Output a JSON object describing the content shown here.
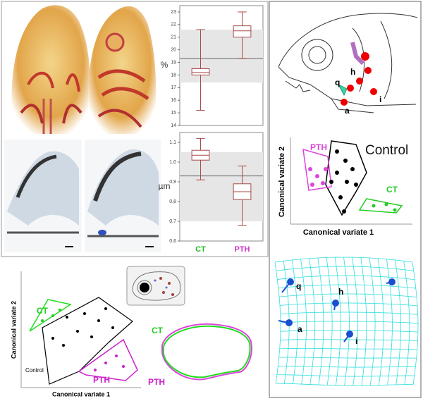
{
  "chart_data": [
    {
      "type": "box",
      "y_label": "%",
      "categories": [
        null,
        null
      ],
      "boxes": [
        {
          "whislo": 15.2,
          "q1": 18.0,
          "med": 18.2,
          "q3": 18.5,
          "whishi": 21.6
        },
        {
          "whislo": 19.3,
          "q1": 21.0,
          "med": 21.5,
          "q3": 21.9,
          "whishi": 23.0
        }
      ],
      "color": "#a84a4a",
      "reference_line": 19.3,
      "reference_band": [
        17.4,
        21.6
      ],
      "ylim": [
        14,
        23.5
      ],
      "yticks": [
        14,
        15,
        16,
        17,
        18,
        19,
        20,
        21,
        22,
        23
      ]
    },
    {
      "type": "box",
      "y_label": "µm",
      "categories": [
        "CT",
        "PTH"
      ],
      "category_colors": [
        "#22bb22",
        "#cc33cc"
      ],
      "boxes": [
        {
          "whislo": 0.91,
          "q1": 1.01,
          "med": 1.035,
          "q3": 1.06,
          "whishi": 1.12
        },
        {
          "whislo": 0.68,
          "q1": 0.81,
          "med": 0.85,
          "q3": 0.89,
          "whishi": 0.98
        }
      ],
      "color": "#a84a4a",
      "reference_line": 0.93,
      "reference_band": [
        0.7,
        1.05
      ],
      "ylim": [
        0.6,
        1.15
      ],
      "yticks": [
        {
          "value": 0.6,
          "label": "0,6"
        },
        {
          "value": 0.7,
          "label": "0,7"
        },
        {
          "value": 0.8,
          "label": "0,8"
        },
        {
          "value": 0.9,
          "label": "0,9"
        },
        {
          "value": 1.0,
          "label": "1,0"
        },
        {
          "value": 1.1,
          "label": "1,1"
        }
      ]
    }
  ],
  "fish": {
    "labels": [
      "q",
      "h",
      "a",
      "i"
    ]
  },
  "scatter_right": {
    "labels": [
      "PTH",
      "Control",
      "CT"
    ],
    "x_label": "Canonical variate 1",
    "y_label": "Canonical variate 2"
  },
  "scatter_left": {
    "labels": [
      "CT",
      "Control",
      "PTH"
    ],
    "x_label": "Canonical variate 1",
    "y_label": "Canonical variate 2"
  },
  "outline": {
    "labels": [
      "CT",
      "PTH"
    ]
  },
  "grid": {
    "labels": [
      "q",
      "h",
      "a",
      "i"
    ]
  }
}
